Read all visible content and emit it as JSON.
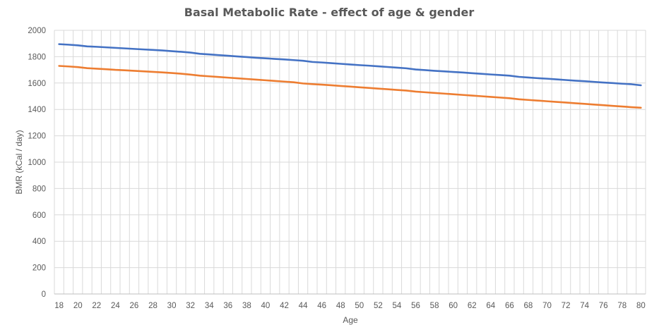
{
  "chart_data": {
    "type": "line",
    "title": "Basal Metabolic Rate - effect of age & gender",
    "xlabel": "Age",
    "ylabel": "BMR (kCal / day)",
    "x": [
      18,
      19,
      20,
      21,
      22,
      23,
      24,
      25,
      26,
      27,
      28,
      29,
      30,
      31,
      32,
      33,
      34,
      35,
      36,
      37,
      38,
      39,
      40,
      41,
      42,
      43,
      44,
      45,
      46,
      47,
      48,
      49,
      50,
      51,
      52,
      53,
      54,
      55,
      56,
      57,
      58,
      59,
      60,
      61,
      62,
      63,
      64,
      65,
      66,
      67,
      68,
      69,
      70,
      71,
      72,
      73,
      74,
      75,
      76,
      77,
      78,
      79,
      80
    ],
    "x_tick_labels": [
      "18",
      "20",
      "22",
      "24",
      "26",
      "28",
      "30",
      "32",
      "34",
      "36",
      "38",
      "40",
      "42",
      "44",
      "46",
      "48",
      "50",
      "52",
      "54",
      "56",
      "58",
      "60",
      "62",
      "64",
      "66",
      "68",
      "70",
      "72",
      "74",
      "76",
      "78",
      "80"
    ],
    "y_tick_labels": [
      "0",
      "200",
      "400",
      "600",
      "800",
      "1000",
      "1200",
      "1400",
      "1600",
      "1800",
      "2000"
    ],
    "xlim": [
      18,
      80
    ],
    "ylim": [
      0,
      2000
    ],
    "grid": true,
    "series": [
      {
        "color": "#4472C4",
        "values": [
          1895,
          1891,
          1886,
          1878,
          1875,
          1871,
          1867,
          1863,
          1859,
          1855,
          1851,
          1847,
          1842,
          1837,
          1831,
          1822,
          1817,
          1812,
          1807,
          1802,
          1797,
          1792,
          1788,
          1783,
          1779,
          1774,
          1769,
          1760,
          1756,
          1751,
          1746,
          1741,
          1736,
          1732,
          1727,
          1722,
          1717,
          1712,
          1703,
          1698,
          1693,
          1689,
          1684,
          1680,
          1675,
          1670,
          1665,
          1661,
          1656,
          1647,
          1642,
          1637,
          1633,
          1628,
          1623,
          1618,
          1614,
          1609,
          1604,
          1600,
          1595,
          1591,
          1583
        ]
      },
      {
        "color": "#ED7D31",
        "values": [
          1730,
          1726,
          1721,
          1713,
          1709,
          1705,
          1700,
          1697,
          1693,
          1689,
          1685,
          1681,
          1676,
          1671,
          1664,
          1656,
          1651,
          1646,
          1641,
          1636,
          1631,
          1626,
          1621,
          1616,
          1611,
          1606,
          1597,
          1592,
          1588,
          1583,
          1578,
          1573,
          1568,
          1563,
          1558,
          1553,
          1548,
          1543,
          1535,
          1530,
          1525,
          1520,
          1515,
          1510,
          1505,
          1500,
          1495,
          1490,
          1485,
          1477,
          1472,
          1467,
          1462,
          1457,
          1452,
          1447,
          1442,
          1437,
          1432,
          1427,
          1422,
          1417,
          1413
        ]
      }
    ]
  }
}
